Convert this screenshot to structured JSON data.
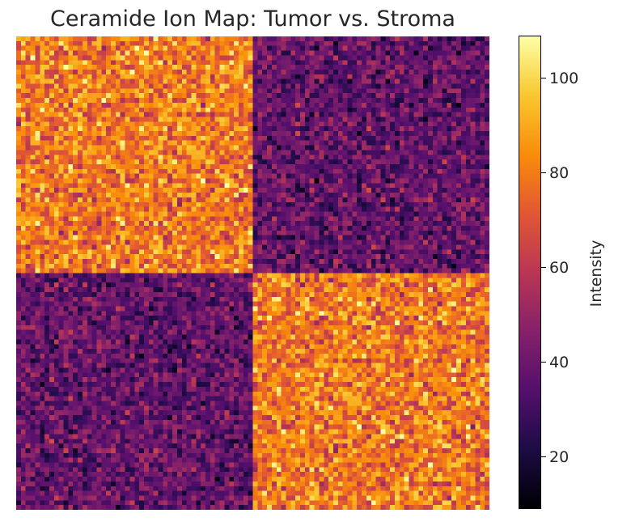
{
  "chart_data": {
    "type": "heatmap",
    "title": "Ceramide Ion Map: Tumor vs. Stroma",
    "grid_size": [
      100,
      100
    ],
    "regions": [
      {
        "name": "top-left",
        "rows": [
          0,
          49
        ],
        "cols": [
          0,
          49
        ],
        "mean": 80,
        "spread": 12
      },
      {
        "name": "top-right",
        "rows": [
          0,
          49
        ],
        "cols": [
          50,
          99
        ],
        "mean": 38,
        "spread": 10
      },
      {
        "name": "bottom-left",
        "rows": [
          50,
          99
        ],
        "cols": [
          0,
          49
        ],
        "mean": 38,
        "spread": 10
      },
      {
        "name": "bottom-right",
        "rows": [
          50,
          99
        ],
        "cols": [
          50,
          99
        ],
        "mean": 80,
        "spread": 12
      }
    ],
    "value_range": [
      9,
      109
    ],
    "colormap": "inferno",
    "colorbar": {
      "label": "Intensity",
      "ticks": [
        20,
        40,
        60,
        80,
        100
      ]
    },
    "xlabel": "",
    "ylabel": "",
    "axes_visible": false
  }
}
